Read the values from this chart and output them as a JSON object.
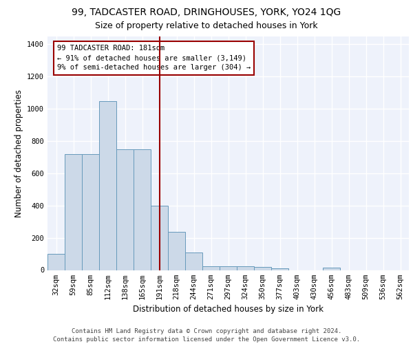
{
  "title_line1": "99, TADCASTER ROAD, DRINGHOUSES, YORK, YO24 1QG",
  "title_line2": "Size of property relative to detached houses in York",
  "xlabel": "Distribution of detached houses by size in York",
  "ylabel": "Number of detached properties",
  "footer": "Contains HM Land Registry data © Crown copyright and database right 2024.\nContains public sector information licensed under the Open Government Licence v3.0.",
  "bar_labels": [
    "32sqm",
    "59sqm",
    "85sqm",
    "112sqm",
    "138sqm",
    "165sqm",
    "191sqm",
    "218sqm",
    "244sqm",
    "271sqm",
    "297sqm",
    "324sqm",
    "350sqm",
    "377sqm",
    "403sqm",
    "430sqm",
    "456sqm",
    "483sqm",
    "509sqm",
    "536sqm",
    "562sqm"
  ],
  "bar_values": [
    100,
    720,
    720,
    1047,
    750,
    750,
    400,
    238,
    110,
    25,
    25,
    25,
    20,
    10,
    0,
    0,
    13,
    0,
    0,
    0,
    0
  ],
  "bar_color": "#ccd9e8",
  "bar_edge_color": "#6699bb",
  "vline_x_index": 6,
  "vline_color": "#990000",
  "annotation_box_text": "99 TADCASTER ROAD: 181sqm\n← 91% of detached houses are smaller (3,149)\n9% of semi-detached houses are larger (304) →",
  "annotation_box_color": "#990000",
  "annotation_box_fill": "#ffffff",
  "ylim": [
    0,
    1450
  ],
  "yticks": [
    0,
    200,
    400,
    600,
    800,
    1000,
    1200,
    1400
  ],
  "background_color": "#eef2fb",
  "grid_color": "#ffffff",
  "title_fontsize": 10,
  "subtitle_fontsize": 9,
  "axis_label_fontsize": 8.5,
  "tick_fontsize": 7.5,
  "annotation_fontsize": 7.5,
  "footer_fontsize": 6.5
}
